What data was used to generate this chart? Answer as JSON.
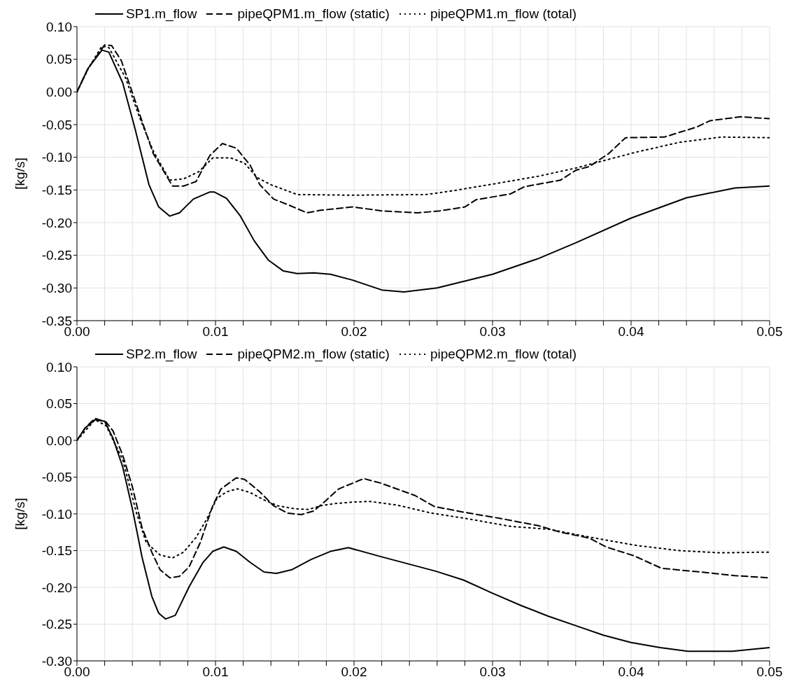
{
  "chart_data": [
    {
      "type": "line",
      "ylabel": "[kg/s]",
      "legend": "top",
      "grid": true,
      "marker": "none",
      "xlim": [
        0,
        0.05
      ],
      "ylim": [
        -0.35,
        0.1
      ],
      "xticks": [
        {
          "value": 0,
          "label": "0.00"
        },
        {
          "value": 0.002,
          "label": null
        },
        {
          "value": 0.004,
          "label": null
        },
        {
          "value": 0.006,
          "label": null
        },
        {
          "value": 0.008,
          "label": null
        },
        {
          "value": 0.01,
          "label": "0.01"
        },
        {
          "value": 0.012,
          "label": null
        },
        {
          "value": 0.014,
          "label": null
        },
        {
          "value": 0.016,
          "label": null
        },
        {
          "value": 0.018,
          "label": null
        },
        {
          "value": 0.02,
          "label": "0.02"
        },
        {
          "value": 0.022,
          "label": null
        },
        {
          "value": 0.024,
          "label": null
        },
        {
          "value": 0.026,
          "label": null
        },
        {
          "value": 0.028,
          "label": null
        },
        {
          "value": 0.03,
          "label": "0.03"
        },
        {
          "value": 0.032,
          "label": null
        },
        {
          "value": 0.034,
          "label": null
        },
        {
          "value": 0.036,
          "label": null
        },
        {
          "value": 0.038,
          "label": null
        },
        {
          "value": 0.04,
          "label": "0.04"
        },
        {
          "value": 0.042,
          "label": null
        },
        {
          "value": 0.044,
          "label": null
        },
        {
          "value": 0.046,
          "label": null
        },
        {
          "value": 0.048,
          "label": null
        },
        {
          "value": 0.05,
          "label": "0.05"
        }
      ],
      "yticks": [
        {
          "value": -0.35,
          "label": "-0.35"
        },
        {
          "value": -0.3,
          "label": "-0.30"
        },
        {
          "value": -0.25,
          "label": "-0.25"
        },
        {
          "value": -0.2,
          "label": "-0.20"
        },
        {
          "value": -0.15,
          "label": "-0.15"
        },
        {
          "value": -0.1,
          "label": "-0.10"
        },
        {
          "value": -0.05,
          "label": "-0.05"
        },
        {
          "value": 0,
          "label": "0.00"
        },
        {
          "value": 0.05,
          "label": "0.05"
        },
        {
          "value": 0.1,
          "label": "0.10"
        }
      ],
      "series": [
        {
          "name": "SP1.m_flow",
          "color": "#000000",
          "line_style": "solid",
          "x": [
            0,
            0.0008,
            0.0018,
            0.0023,
            0.0033,
            0.0042,
            0.0052,
            0.0059,
            0.0067,
            0.0074,
            0.0084,
            0.0096,
            0.0099,
            0.0108,
            0.0118,
            0.0128,
            0.0138,
            0.0149,
            0.0159,
            0.0171,
            0.0183,
            0.0199,
            0.022,
            0.0236,
            0.026,
            0.03,
            0.0333,
            0.036,
            0.04,
            0.044,
            0.0475,
            0.05
          ],
          "values": [
            0,
            0.036,
            0.064,
            0.061,
            0.014,
            -0.057,
            -0.142,
            -0.176,
            -0.19,
            -0.185,
            -0.164,
            -0.153,
            -0.153,
            -0.163,
            -0.19,
            -0.228,
            -0.257,
            -0.274,
            -0.278,
            -0.277,
            -0.279,
            -0.288,
            -0.303,
            -0.306,
            -0.3,
            -0.279,
            -0.255,
            -0.231,
            -0.193,
            -0.162,
            -0.147,
            -0.144
          ]
        },
        {
          "name": "pipeQPM1.m_flow (static)",
          "color": "#000000",
          "line_style": "dashed",
          "x": [
            0,
            0.0008,
            0.002,
            0.0025,
            0.0032,
            0.004,
            0.0047,
            0.0055,
            0.006,
            0.0069,
            0.0077,
            0.0086,
            0.0096,
            0.0105,
            0.0115,
            0.0125,
            0.0132,
            0.0142,
            0.0154,
            0.0166,
            0.0176,
            0.0199,
            0.022,
            0.0246,
            0.0262,
            0.028,
            0.0288,
            0.0313,
            0.0323,
            0.0349,
            0.036,
            0.037,
            0.0384,
            0.0396,
            0.0424,
            0.0447,
            0.0457,
            0.0479,
            0.05
          ],
          "values": [
            0,
            0.036,
            0.072,
            0.071,
            0.048,
            -0.001,
            -0.045,
            -0.094,
            -0.112,
            -0.144,
            -0.144,
            -0.137,
            -0.097,
            -0.079,
            -0.086,
            -0.112,
            -0.142,
            -0.164,
            -0.174,
            -0.185,
            -0.181,
            -0.176,
            -0.182,
            -0.185,
            -0.182,
            -0.176,
            -0.165,
            -0.156,
            -0.145,
            -0.135,
            -0.12,
            -0.114,
            -0.094,
            -0.07,
            -0.069,
            -0.054,
            -0.044,
            -0.038,
            -0.041
          ]
        },
        {
          "name": "pipeQPM1.m_flow (total)",
          "color": "#000000",
          "line_style": "dotted",
          "x": [
            0,
            0.0008,
            0.0018,
            0.0023,
            0.0035,
            0.0045,
            0.0055,
            0.0067,
            0.0077,
            0.0088,
            0.0098,
            0.0111,
            0.0121,
            0.013,
            0.014,
            0.0159,
            0.0199,
            0.0252,
            0.0272,
            0.0303,
            0.0333,
            0.0361,
            0.0384,
            0.0404,
            0.0435,
            0.0465,
            0.05
          ],
          "values": [
            0,
            0.035,
            0.07,
            0.068,
            0.022,
            -0.038,
            -0.09,
            -0.135,
            -0.133,
            -0.122,
            -0.101,
            -0.101,
            -0.109,
            -0.131,
            -0.142,
            -0.157,
            -0.158,
            -0.157,
            -0.151,
            -0.14,
            -0.129,
            -0.116,
            -0.103,
            -0.092,
            -0.077,
            -0.069,
            -0.07
          ]
        }
      ]
    },
    {
      "type": "line",
      "ylabel": "[kg/s]",
      "legend": "top",
      "grid": true,
      "marker": "none",
      "xlim": [
        0,
        0.05
      ],
      "ylim": [
        -0.3,
        0.1
      ],
      "xticks": [
        {
          "value": 0,
          "label": "0.00"
        },
        {
          "value": 0.002,
          "label": null
        },
        {
          "value": 0.004,
          "label": null
        },
        {
          "value": 0.006,
          "label": null
        },
        {
          "value": 0.008,
          "label": null
        },
        {
          "value": 0.01,
          "label": "0.01"
        },
        {
          "value": 0.012,
          "label": null
        },
        {
          "value": 0.014,
          "label": null
        },
        {
          "value": 0.016,
          "label": null
        },
        {
          "value": 0.018,
          "label": null
        },
        {
          "value": 0.02,
          "label": "0.02"
        },
        {
          "value": 0.022,
          "label": null
        },
        {
          "value": 0.024,
          "label": null
        },
        {
          "value": 0.026,
          "label": null
        },
        {
          "value": 0.028,
          "label": null
        },
        {
          "value": 0.03,
          "label": "0.03"
        },
        {
          "value": 0.032,
          "label": null
        },
        {
          "value": 0.034,
          "label": null
        },
        {
          "value": 0.036,
          "label": null
        },
        {
          "value": 0.038,
          "label": null
        },
        {
          "value": 0.04,
          "label": "0.04"
        },
        {
          "value": 0.042,
          "label": null
        },
        {
          "value": 0.044,
          "label": null
        },
        {
          "value": 0.046,
          "label": null
        },
        {
          "value": 0.048,
          "label": null
        },
        {
          "value": 0.05,
          "label": "0.05"
        }
      ],
      "yticks": [
        {
          "value": -0.3,
          "label": "-0.30"
        },
        {
          "value": -0.25,
          "label": "-0.25"
        },
        {
          "value": -0.2,
          "label": "-0.20"
        },
        {
          "value": -0.15,
          "label": "-0.15"
        },
        {
          "value": -0.1,
          "label": "-0.10"
        },
        {
          "value": -0.05,
          "label": "-0.05"
        },
        {
          "value": 0,
          "label": "0.00"
        },
        {
          "value": 0.05,
          "label": "0.05"
        },
        {
          "value": 0.1,
          "label": "0.10"
        }
      ],
      "series": [
        {
          "name": "SP2.m_flow",
          "color": "#000000",
          "line_style": "solid",
          "x": [
            0,
            0.0006,
            0.0013,
            0.002,
            0.0026,
            0.0033,
            0.004,
            0.0047,
            0.0054,
            0.0059,
            0.0064,
            0.0071,
            0.0081,
            0.0091,
            0.0098,
            0.0106,
            0.0115,
            0.0125,
            0.0135,
            0.0144,
            0.0155,
            0.0169,
            0.0183,
            0.0196,
            0.0219,
            0.0259,
            0.0279,
            0.03,
            0.0321,
            0.034,
            0.036,
            0.038,
            0.04,
            0.0421,
            0.0441,
            0.0473,
            0.05
          ],
          "values": [
            0,
            0.017,
            0.028,
            0.026,
            0.003,
            -0.036,
            -0.093,
            -0.159,
            -0.212,
            -0.235,
            -0.243,
            -0.238,
            -0.199,
            -0.166,
            -0.151,
            -0.145,
            -0.151,
            -0.166,
            -0.179,
            -0.181,
            -0.176,
            -0.162,
            -0.151,
            -0.146,
            -0.158,
            -0.178,
            -0.19,
            -0.208,
            -0.225,
            -0.239,
            -0.252,
            -0.265,
            -0.275,
            -0.282,
            -0.287,
            -0.287,
            -0.282
          ]
        },
        {
          "name": "pipeQPM2.m_flow (static)",
          "color": "#000000",
          "line_style": "dashed",
          "x": [
            0,
            0.0006,
            0.0013,
            0.0021,
            0.0026,
            0.0033,
            0.004,
            0.0047,
            0.0054,
            0.006,
            0.0067,
            0.0074,
            0.0081,
            0.0089,
            0.0098,
            0.0104,
            0.0115,
            0.0121,
            0.0132,
            0.0142,
            0.0152,
            0.0162,
            0.0171,
            0.0179,
            0.0189,
            0.0207,
            0.0219,
            0.0244,
            0.0258,
            0.028,
            0.0305,
            0.0333,
            0.0349,
            0.037,
            0.0382,
            0.0402,
            0.0422,
            0.0455,
            0.0475,
            0.05
          ],
          "values": [
            0,
            0.017,
            0.03,
            0.025,
            0.013,
            -0.02,
            -0.063,
            -0.119,
            -0.152,
            -0.176,
            -0.187,
            -0.185,
            -0.172,
            -0.139,
            -0.089,
            -0.066,
            -0.051,
            -0.053,
            -0.07,
            -0.089,
            -0.099,
            -0.101,
            -0.096,
            -0.083,
            -0.066,
            -0.052,
            -0.058,
            -0.075,
            -0.09,
            -0.098,
            -0.106,
            -0.116,
            -0.125,
            -0.133,
            -0.145,
            -0.157,
            -0.174,
            -0.18,
            -0.184,
            -0.187
          ]
        },
        {
          "name": "pipeQPM2.m_flow (total)",
          "color": "#000000",
          "line_style": "dotted",
          "x": [
            0,
            0.0013,
            0.0021,
            0.0033,
            0.0043,
            0.005,
            0.006,
            0.0069,
            0.0077,
            0.0086,
            0.0094,
            0.0101,
            0.0108,
            0.0116,
            0.0125,
            0.0135,
            0.0145,
            0.0157,
            0.0167,
            0.0176,
            0.0186,
            0.0199,
            0.0211,
            0.0231,
            0.0256,
            0.028,
            0.0313,
            0.0341,
            0.0374,
            0.0404,
            0.0435,
            0.0465,
            0.05
          ],
          "values": [
            0,
            0.028,
            0.02,
            -0.026,
            -0.099,
            -0.139,
            -0.156,
            -0.16,
            -0.152,
            -0.132,
            -0.106,
            -0.079,
            -0.07,
            -0.066,
            -0.071,
            -0.081,
            -0.089,
            -0.093,
            -0.094,
            -0.089,
            -0.086,
            -0.084,
            -0.083,
            -0.088,
            -0.099,
            -0.106,
            -0.117,
            -0.121,
            -0.133,
            -0.143,
            -0.15,
            -0.153,
            -0.152
          ]
        }
      ]
    }
  ]
}
